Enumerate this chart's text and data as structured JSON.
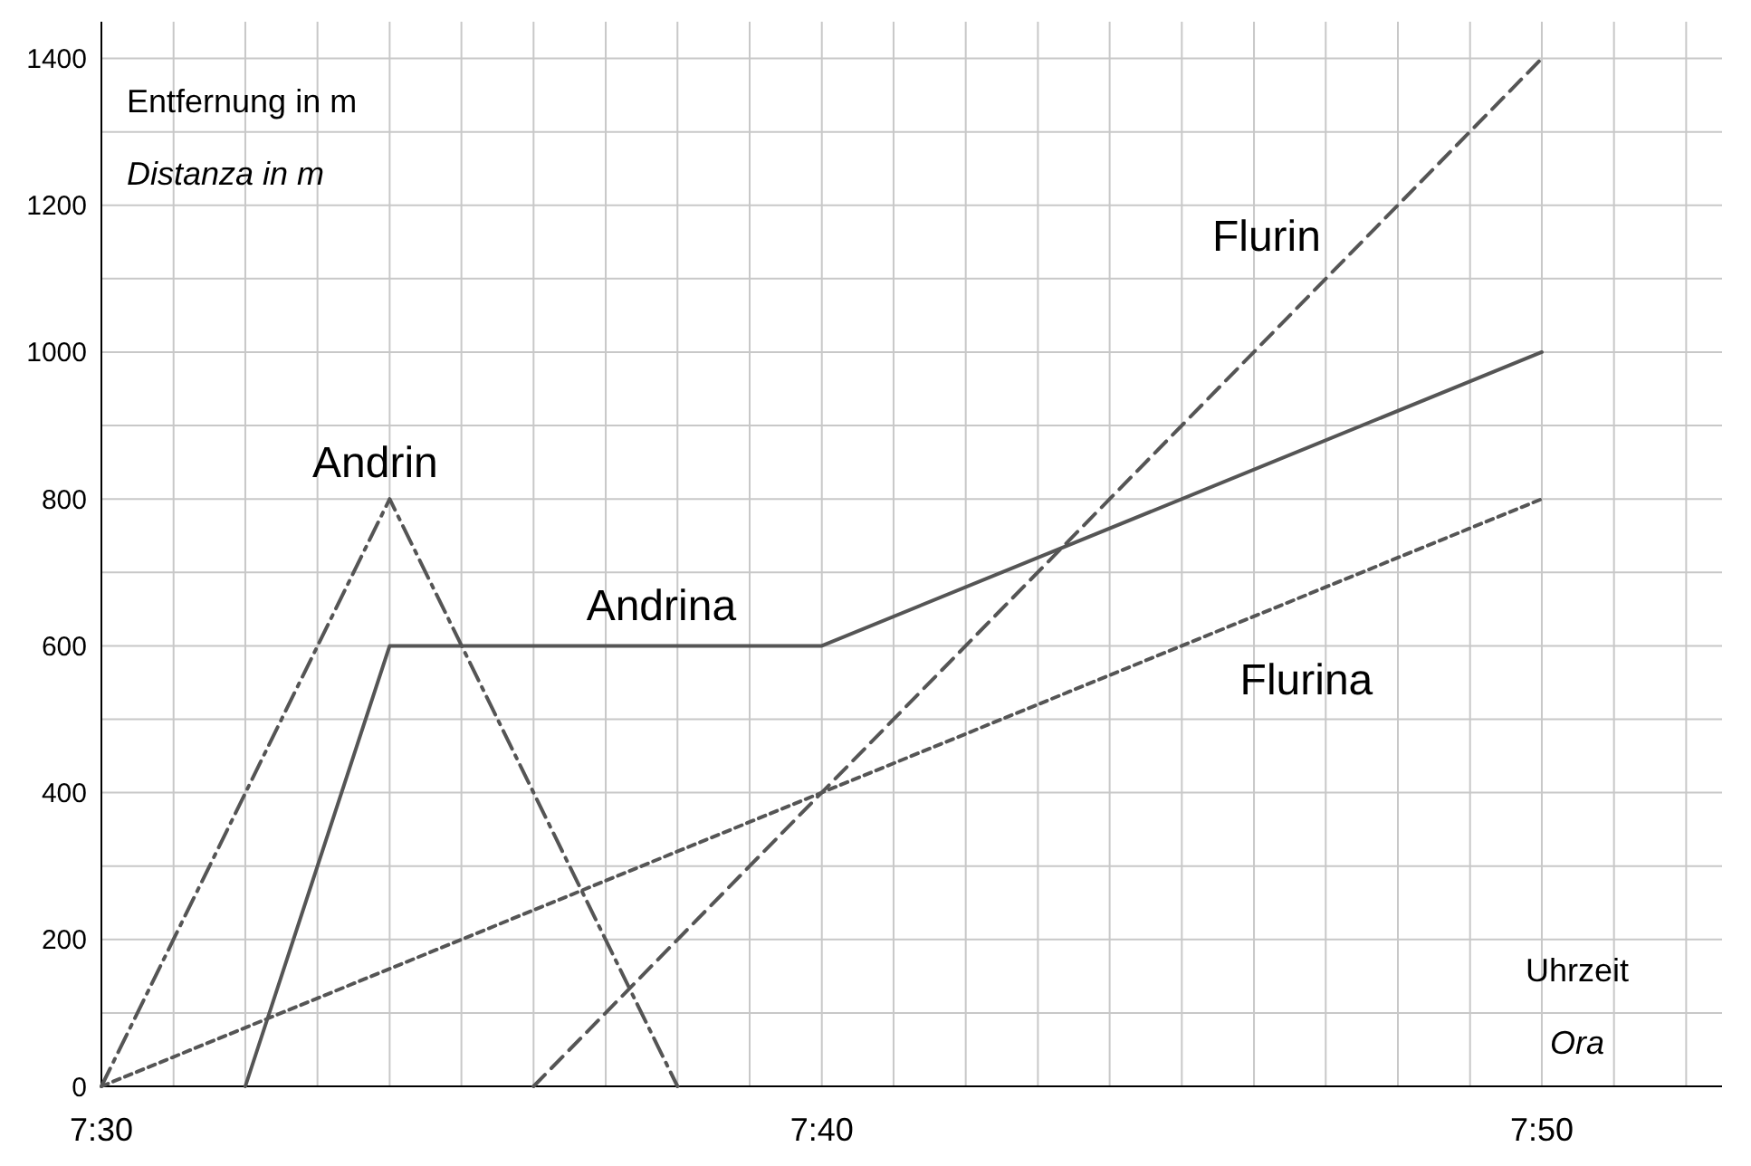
{
  "chart_data": {
    "type": "line",
    "xlabel": "Uhrzeit\nOra",
    "ylabel": "Entfernung in m\nDistanza in m",
    "xlim": [
      7.5,
      7.875
    ],
    "ylim": [
      0,
      1450
    ],
    "xticks": [
      {
        "value": 7.5,
        "label": "7:30"
      },
      {
        "value": 7.5167,
        "label": null
      },
      {
        "value": 7.5333,
        "label": null
      },
      {
        "value": 7.55,
        "label": null
      },
      {
        "value": 7.5667,
        "label": null
      },
      {
        "value": 7.5833,
        "label": null
      },
      {
        "value": 7.6,
        "label": null
      },
      {
        "value": 7.6167,
        "label": null
      },
      {
        "value": 7.6333,
        "label": null
      },
      {
        "value": 7.65,
        "label": null
      },
      {
        "value": 7.6667,
        "label": "7:40"
      },
      {
        "value": 7.6833,
        "label": null
      },
      {
        "value": 7.7,
        "label": null
      },
      {
        "value": 7.7167,
        "label": null
      },
      {
        "value": 7.7333,
        "label": null
      },
      {
        "value": 7.75,
        "label": null
      },
      {
        "value": 7.7667,
        "label": null
      },
      {
        "value": 7.7833,
        "label": null
      },
      {
        "value": 7.8,
        "label": null
      },
      {
        "value": 7.8167,
        "label": null
      },
      {
        "value": 7.8333,
        "label": "7:50"
      },
      {
        "value": 7.85,
        "label": null
      },
      {
        "value": 7.8667,
        "label": null
      }
    ],
    "yticks": [
      0,
      {
        "value": 100,
        "label": null
      },
      200,
      {
        "value": 300,
        "label": null
      },
      400,
      {
        "value": 500,
        "label": null
      },
      600,
      {
        "value": 700,
        "label": null
      },
      800,
      {
        "value": 900,
        "label": null
      },
      1000,
      {
        "value": 1100,
        "label": null
      },
      1200,
      {
        "value": 1300,
        "label": null
      },
      1400
    ],
    "grid": true,
    "marker": "none",
    "series": [
      {
        "name": "Andrin",
        "color": "#555555",
        "line_style": "dashdot",
        "x": [
          7.5,
          7.5667,
          7.6333
        ],
        "values": [
          0,
          800,
          0
        ]
      },
      {
        "name": "Andrina",
        "color": "#555555",
        "line_style": "solid",
        "x": [
          7.5333,
          7.5667,
          7.6667,
          7.8333
        ],
        "values": [
          0,
          600,
          600,
          1000
        ]
      },
      {
        "name": "Flurin",
        "color": "#555555",
        "line_style": "dashed",
        "x": [
          7.6,
          7.8333
        ],
        "values": [
          0,
          1400
        ]
      },
      {
        "name": "Flurina",
        "color": "#555555",
        "line_style": "dotted",
        "x": [
          7.5,
          7.8333
        ],
        "values": [
          0,
          800
        ]
      }
    ]
  }
}
